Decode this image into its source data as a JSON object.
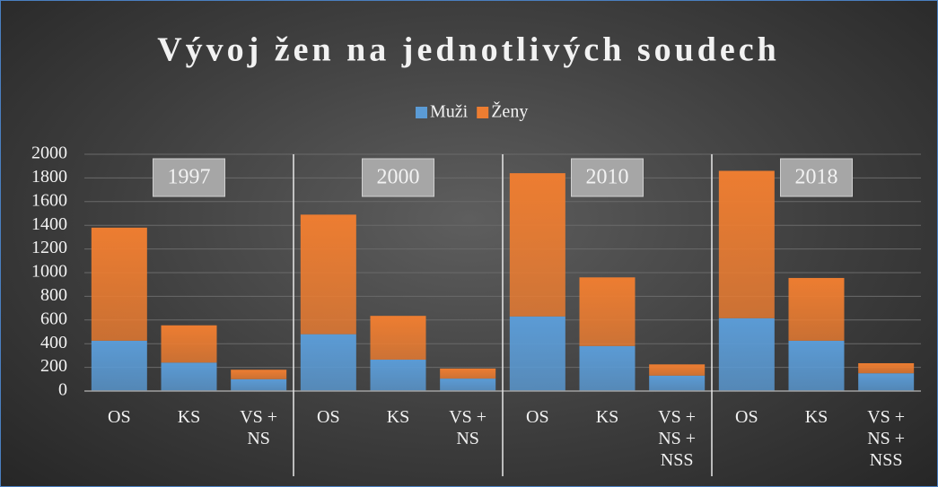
{
  "chart_data": {
    "type": "stacked_bar",
    "title": "Vývoj žen na jednotlivých soudech",
    "groups": [
      "1997",
      "2000",
      "2010",
      "2018"
    ],
    "categories": [
      "OS",
      "KS",
      "VS + NS",
      "OS",
      "KS",
      "VS + NS",
      "OS",
      "KS",
      "VS + NS + NSS",
      "OS",
      "KS",
      "VS + NS + NSS"
    ],
    "series": [
      {
        "name": "Muži",
        "color": "#5b9bd5",
        "values": [
          425,
          240,
          100,
          480,
          265,
          105,
          630,
          380,
          130,
          615,
          425,
          150
        ]
      },
      {
        "name": "Ženy",
        "color": "#ed7d31",
        "values": [
          955,
          315,
          80,
          1010,
          370,
          85,
          1210,
          580,
          95,
          1245,
          530,
          85
        ]
      }
    ],
    "ylim": [
      0,
      2000
    ],
    "yticks": [
      0,
      200,
      400,
      600,
      800,
      1000,
      1200,
      1400,
      1600,
      1800,
      2000
    ],
    "grid": true,
    "legend": "top"
  }
}
